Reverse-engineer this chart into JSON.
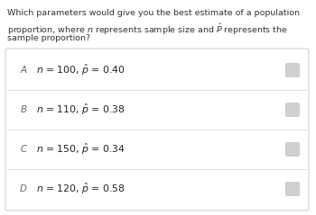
{
  "question_lines": [
    "Which parameters would give you the best estimate of a population",
    "proportion, where $n$ represents sample size and $\\hat{P}$ represents the",
    "sample proportion?"
  ],
  "options": [
    {
      "label": "A",
      "text_plain": "n = 100, ",
      "text_math": "\\hat{p} = 0.40"
    },
    {
      "label": "B",
      "text_plain": "n = 110, ",
      "text_math": "\\hat{p} = 0.38"
    },
    {
      "label": "C",
      "text_plain": "n = 150, ",
      "text_math": "\\hat{p} = 0.34"
    },
    {
      "label": "D",
      "text_plain": "n = 120, ",
      "text_math": "\\hat{p} = 0.58"
    }
  ],
  "bg_color": "#f8f8f8",
  "page_bg": "#ffffff",
  "box_bg": "#ffffff",
  "box_border": "#cccccc",
  "divider_color": "#dddddd",
  "label_color": "#666666",
  "text_color": "#222222",
  "question_color": "#333333",
  "checkbox_color": "#d0d0d0",
  "checkbox_border": "#bbbbbb",
  "figsize": [
    3.5,
    2.39
  ],
  "dpi": 100
}
